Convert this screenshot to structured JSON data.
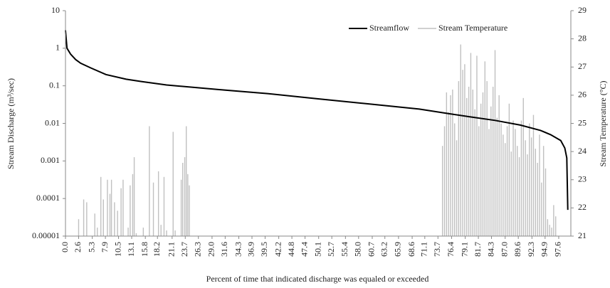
{
  "chart_data": {
    "type": "flow-duration",
    "xlabel": "Percent of time that indicated discharge was equaled or exceeded",
    "ylabel": "Stream Discharge (m³/sec)",
    "y2label": "Stream Temperature (°C)",
    "xlim": [
      0,
      100
    ],
    "xticks": [
      {
        "value": 0,
        "label": "0.0"
      },
      2.6,
      5.3,
      7.9,
      10.5,
      13.1,
      15.8,
      18.2,
      21.1,
      23.7,
      26.3,
      {
        "value": 29,
        "label": "29.0"
      },
      31.6,
      34.3,
      36.9,
      39.5,
      42.2,
      44.8,
      47.4,
      50.1,
      52.7,
      55.4,
      {
        "value": 58,
        "label": "58.0"
      },
      60.7,
      63.2,
      65.9,
      68.6,
      71.1,
      73.7,
      76.4,
      79.1,
      81.7,
      84.3,
      {
        "value": 87,
        "label": "87.0"
      },
      89.6,
      92.3,
      94.9,
      97.6
    ],
    "ylim": [
      1e-05,
      10
    ],
    "yticks": [
      10,
      1,
      0.1,
      0.01,
      0.001,
      0.0001,
      1e-05
    ],
    "log_y": true,
    "y2lim": [
      21,
      29
    ],
    "y2ticks": [
      21,
      22,
      23,
      24,
      25,
      26,
      27,
      28,
      29
    ],
    "legend": "top-right",
    "series": [
      {
        "name": "Streamflow",
        "color": "#000000",
        "kind": "line",
        "x": [
          0,
          0.3,
          1,
          2,
          3,
          5,
          8,
          12,
          15,
          20,
          30,
          40,
          50,
          60,
          70,
          76,
          80,
          85,
          90,
          94,
          96,
          98,
          98.8,
          99.2,
          99.4
        ],
        "values": [
          3,
          1.0,
          0.7,
          0.5,
          0.4,
          0.3,
          0.2,
          0.15,
          0.13,
          0.105,
          0.08,
          0.062,
          0.045,
          0.033,
          0.024,
          0.018,
          0.015,
          0.012,
          0.009,
          0.0065,
          0.005,
          0.0035,
          0.0022,
          0.0012,
          5e-05
        ]
      },
      {
        "name": "Stream Temperature",
        "color": "#c0c0c0",
        "kind": "bar",
        "axis": "y2",
        "x": [
          2.6,
          3.6,
          4.2,
          5.8,
          6.3,
          7.0,
          7.5,
          8.3,
          8.8,
          9.1,
          9.7,
          10.3,
          11.0,
          11.4,
          12.4,
          12.8,
          13.3,
          13.6,
          14.0,
          15.4,
          16.6,
          17.4,
          18.4,
          18.9,
          19.5,
          20.0,
          21.3,
          21.7,
          22.9,
          23.2,
          23.6,
          23.9,
          24.2,
          24.5,
          74.6,
          75.0,
          75.4,
          75.8,
          76.2,
          76.6,
          77.0,
          77.4,
          77.8,
          78.2,
          78.6,
          79.0,
          79.4,
          79.8,
          80.2,
          80.6,
          81.0,
          81.4,
          81.8,
          82.2,
          82.6,
          83.0,
          83.4,
          83.8,
          84.2,
          84.6,
          85.0,
          85.4,
          85.8,
          86.2,
          86.6,
          87.0,
          87.4,
          87.8,
          88.2,
          88.6,
          89.0,
          89.4,
          89.8,
          90.2,
          90.6,
          91.0,
          91.4,
          91.8,
          92.2,
          92.6,
          93.0,
          93.4,
          93.8,
          94.2,
          94.6,
          95.0,
          95.4,
          95.8,
          96.2,
          96.6,
          97.0
        ],
        "values": [
          21.6,
          22.3,
          22.2,
          21.8,
          21.3,
          23.1,
          22.3,
          23.0,
          22.5,
          23.0,
          22.2,
          21.9,
          22.7,
          23.0,
          21.3,
          22.8,
          23.2,
          23.8,
          21.1,
          21.3,
          24.9,
          22.9,
          23.3,
          21.4,
          23.1,
          21.2,
          24.7,
          21.2,
          23.0,
          23.6,
          23.8,
          24.9,
          23.2,
          22.8,
          24.2,
          24.9,
          26.1,
          25.4,
          26.0,
          26.2,
          25.0,
          24.4,
          26.5,
          27.8,
          26.9,
          27.1,
          25.9,
          26.3,
          27.5,
          26.2,
          25.5,
          27.4,
          24.9,
          25.7,
          26.1,
          27.2,
          26.5,
          24.8,
          25.6,
          26.3,
          27.6,
          25.2,
          26.0,
          25.0,
          24.6,
          24.3,
          24.9,
          25.7,
          24.0,
          25.1,
          24.8,
          24.2,
          23.8,
          25.1,
          25.9,
          24.4,
          23.9,
          25.0,
          24.5,
          25.3,
          24.1,
          23.6,
          24.6,
          22.9,
          24.2,
          23.4,
          21.6,
          21.4,
          21.3,
          22.1,
          21.7
        ]
      }
    ]
  }
}
